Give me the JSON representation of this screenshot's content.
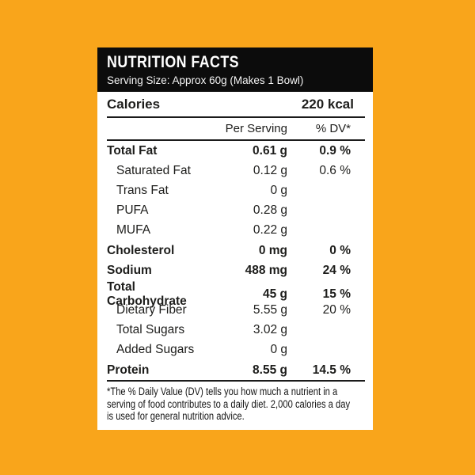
{
  "theme": {
    "background_color": "#F9A51B",
    "panel_color": "#FFFFFF",
    "header_bar_color": "#0C0C0C",
    "text_color": "#1D1D1B"
  },
  "header": {
    "title": "NUTRITION FACTS",
    "serving_size": "Serving Size: Approx 60g (Makes 1 Bowl)"
  },
  "calories": {
    "label": "Calories",
    "value": "220 kcal"
  },
  "columns": {
    "amount": "Per Serving",
    "dv": "% DV*"
  },
  "rows": [
    {
      "label": "Total Fat",
      "amount": "0.61 g",
      "dv": "0.9 %"
    },
    {
      "label": "Saturated Fat",
      "amount": "0.12 g",
      "dv": "0.6 %"
    },
    {
      "label": "Trans Fat",
      "amount": "0 g",
      "dv": ""
    },
    {
      "label": "PUFA",
      "amount": "0.28 g",
      "dv": ""
    },
    {
      "label": "MUFA",
      "amount": "0.22 g",
      "dv": ""
    },
    {
      "label": "Cholesterol",
      "amount": "0 mg",
      "dv": "0 %"
    },
    {
      "label": "Sodium",
      "amount": "488 mg",
      "dv": "24 %"
    },
    {
      "label": "Total Carbohydrate",
      "amount": "45 g",
      "dv": "15 %"
    },
    {
      "label": "Dietary Fiber",
      "amount": "5.55 g",
      "dv": "20 %"
    },
    {
      "label": "Total Sugars",
      "amount": "3.02 g",
      "dv": ""
    },
    {
      "label": "Added Sugars",
      "amount": "0 g",
      "dv": ""
    },
    {
      "label": "Protein",
      "amount": "8.55 g",
      "dv": "14.5 %"
    }
  ],
  "footnote": {
    "lines": [
      "*The % Daily Value (DV) tells you how much a nutrient in a",
      "serving of food contributes to a daily diet. 2,000 calories a day",
      "is used for general nutrition advice."
    ]
  }
}
